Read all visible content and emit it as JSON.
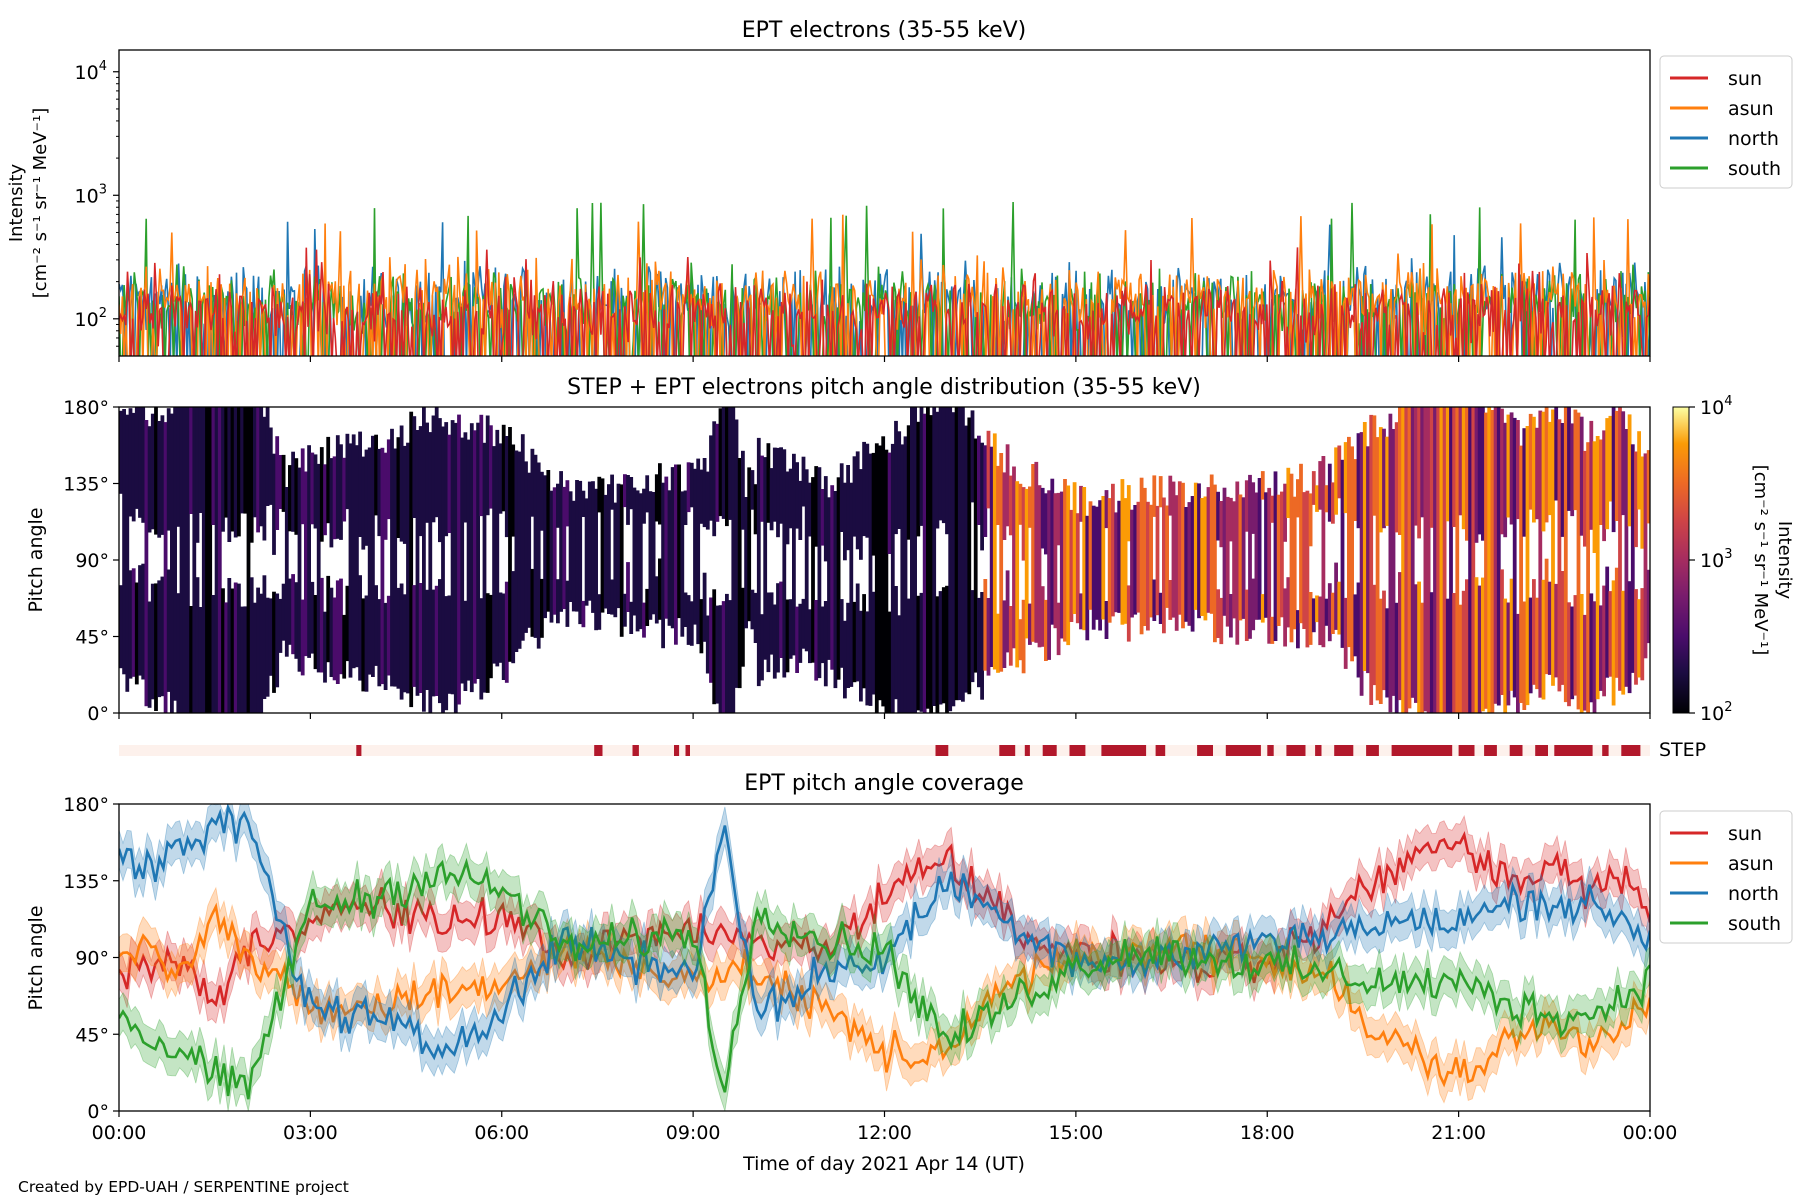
{
  "figure": {
    "credit": "Created by EPD-UAH / SERPENTINE project"
  },
  "colors": {
    "sun": "#d62728",
    "asun": "#ff7f0e",
    "north": "#1f77b4",
    "south": "#2ca02c",
    "step_on": "#b2182b",
    "step_off": "#fdf1ec"
  },
  "chart_data": [
    {
      "id": "intensity",
      "type": "line",
      "title": "EPT electrons (35-55 keV)",
      "ylabel_line1": "Intensity",
      "ylabel_line2": "[cm⁻² s⁻¹ sr⁻¹ MeV⁻¹]",
      "yscale": "log",
      "ylim": [
        50,
        15000
      ],
      "yticks": [
        {
          "value": 100,
          "base": "10",
          "exp": "2"
        },
        {
          "value": 1000,
          "base": "10",
          "exp": "3"
        },
        {
          "value": 10000,
          "base": "10",
          "exp": "4"
        }
      ],
      "xlim_hours": [
        0,
        24
      ],
      "legend": "outside-right",
      "series": [
        {
          "name": "north",
          "color_key": "north",
          "baseline": 150,
          "peak": 650
        },
        {
          "name": "south",
          "color_key": "south",
          "baseline": 140,
          "peak": 900
        },
        {
          "name": "asun",
          "color_key": "asun",
          "baseline": 160,
          "peak": 700
        },
        {
          "name": "sun",
          "color_key": "sun",
          "baseline": 120,
          "peak": 400
        }
      ],
      "legend_order": [
        "sun",
        "asun",
        "north",
        "south"
      ]
    },
    {
      "id": "pad",
      "type": "heatmap",
      "title": "STEP + EPT electrons pitch angle distribution (35-55 keV)",
      "ylabel": "Pitch angle",
      "ylim": [
        0,
        180
      ],
      "yticks": [
        "0°",
        "45°",
        "90°",
        "135°",
        "180°"
      ],
      "colorbar": {
        "label_line1": "Intensity",
        "label_line2": "[cm⁻² s⁻¹ sr⁻¹ MeV⁻¹]",
        "scale": "log",
        "range": [
          100,
          10000
        ],
        "ticks": [
          {
            "base": "10",
            "exp": "2"
          },
          {
            "base": "10",
            "exp": "3"
          },
          {
            "base": "10",
            "exp": "4"
          }
        ],
        "colormap": "inferno"
      },
      "xlim_hours": [
        0,
        24
      ]
    },
    {
      "id": "step",
      "type": "table",
      "label": "STEP",
      "active_intervals_hours": [
        [
          3.72,
          3.8
        ],
        [
          7.45,
          7.58
        ],
        [
          8.05,
          8.15
        ],
        [
          8.7,
          8.78
        ],
        [
          8.88,
          8.95
        ],
        [
          12.8,
          13.0
        ],
        [
          13.8,
          14.05
        ],
        [
          14.2,
          14.28
        ],
        [
          14.48,
          14.7
        ],
        [
          14.9,
          15.15
        ],
        [
          15.4,
          16.1
        ],
        [
          16.25,
          16.4
        ],
        [
          16.9,
          17.15
        ],
        [
          17.35,
          17.9
        ],
        [
          18.0,
          18.1
        ],
        [
          18.3,
          18.6
        ],
        [
          18.75,
          18.85
        ],
        [
          19.05,
          19.35
        ],
        [
          19.55,
          19.75
        ],
        [
          19.95,
          20.9
        ],
        [
          21.0,
          21.25
        ],
        [
          21.4,
          21.6
        ],
        [
          21.8,
          22.0
        ],
        [
          22.2,
          22.4
        ],
        [
          22.5,
          23.1
        ],
        [
          23.25,
          23.35
        ],
        [
          23.55,
          23.85
        ]
      ]
    },
    {
      "id": "coverage",
      "type": "line",
      "title": "EPT pitch angle coverage",
      "ylabel": "Pitch angle",
      "xlabel": "Time of day 2021 Apr 14 (UT)",
      "ylim": [
        0,
        180
      ],
      "yticks": [
        "0°",
        "45°",
        "90°",
        "135°",
        "180°"
      ],
      "xticks": [
        "00:00",
        "03:00",
        "06:00",
        "09:00",
        "12:00",
        "15:00",
        "18:00",
        "21:00",
        "00:00"
      ],
      "xlim_hours": [
        0,
        24
      ],
      "legend": "outside-right",
      "series": [
        {
          "name": "sun",
          "color_key": "sun",
          "times": [
            0,
            1,
            1.5,
            2,
            3,
            4,
            5,
            6,
            7,
            8,
            9,
            10,
            11,
            12,
            12.5,
            13,
            14,
            15,
            16,
            17,
            18,
            19,
            19.5,
            20,
            20.5,
            21,
            22,
            22.5,
            23,
            23.5,
            24
          ],
          "values": [
            80,
            90,
            60,
            95,
            115,
            120,
            110,
            115,
            90,
            100,
            105,
            100,
            95,
            125,
            140,
            150,
            110,
            90,
            90,
            85,
            85,
            110,
            130,
            140,
            155,
            160,
            130,
            150,
            125,
            145,
            110
          ]
        },
        {
          "name": "asun",
          "color_key": "asun",
          "times": [
            0,
            1,
            1.5,
            2,
            3,
            4,
            5,
            6,
            7,
            8,
            9,
            10,
            11,
            12,
            12.5,
            13,
            14,
            15,
            16,
            17,
            18,
            19,
            19.5,
            20,
            20.5,
            21,
            22,
            22.5,
            23,
            23.5,
            24
          ],
          "values": [
            100,
            85,
            120,
            90,
            60,
            60,
            70,
            75,
            95,
            85,
            80,
            80,
            60,
            35,
            30,
            40,
            75,
            90,
            95,
            95,
            90,
            80,
            50,
            40,
            30,
            20,
            45,
            50,
            40,
            50,
            70
          ]
        },
        {
          "name": "north",
          "color_key": "north",
          "times": [
            0,
            0.5,
            1,
            1.5,
            2,
            3,
            4,
            5,
            6,
            7,
            8,
            9,
            9.5,
            10,
            11,
            12,
            13,
            14,
            15,
            16,
            17,
            18,
            19,
            20,
            21,
            22,
            23,
            23.5,
            24
          ],
          "values": [
            150,
            140,
            155,
            165,
            170,
            60,
            55,
            35,
            60,
            100,
            90,
            80,
            170,
            55,
            80,
            90,
            135,
            110,
            90,
            85,
            95,
            100,
            105,
            110,
            110,
            125,
            120,
            115,
            100
          ]
        },
        {
          "name": "south",
          "color_key": "south",
          "times": [
            0,
            0.5,
            1,
            1.5,
            2,
            3,
            4,
            5,
            6,
            7,
            8,
            9,
            9.5,
            10,
            11,
            12,
            13,
            14,
            15,
            16,
            17,
            18,
            19,
            20,
            21,
            22,
            23,
            23.5,
            24
          ],
          "values": [
            60,
            40,
            35,
            20,
            10,
            120,
            125,
            140,
            130,
            95,
            100,
            105,
            10,
            120,
            100,
            95,
            40,
            65,
            85,
            95,
            90,
            85,
            80,
            75,
            75,
            60,
            55,
            65,
            80
          ]
        }
      ],
      "legend_order": [
        "sun",
        "asun",
        "north",
        "south"
      ]
    }
  ]
}
